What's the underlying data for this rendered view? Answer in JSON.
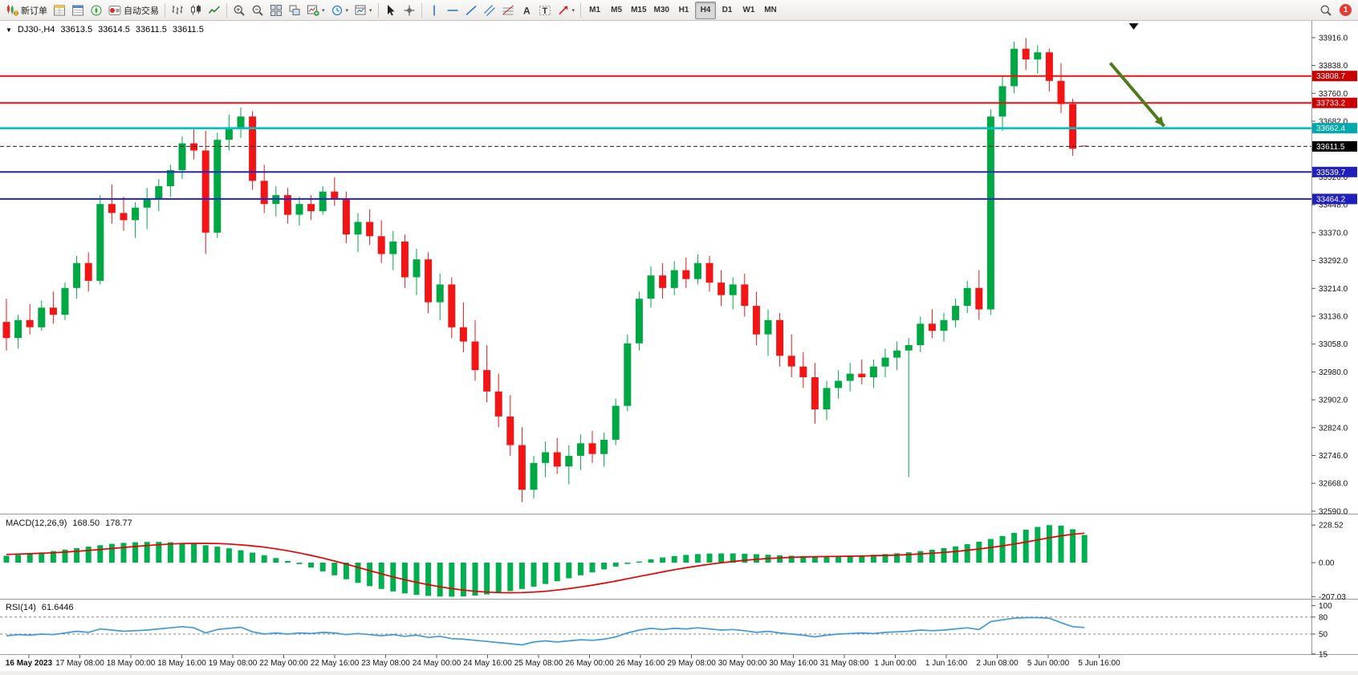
{
  "icons": {
    "dropdown": "▾",
    "collapse": "▼",
    "text_tool": "A",
    "label_tool": "T"
  },
  "toolbar": {
    "new_order_label": "新订单",
    "autotrading_label": "自动交易",
    "timeframes": [
      "M1",
      "M5",
      "M15",
      "M30",
      "H1",
      "H4",
      "D1",
      "W1",
      "MN"
    ],
    "active_timeframe": "H4",
    "notification_count": "1"
  },
  "chart_header": {
    "symbol_period": "DJ30-,H4",
    "open": "33613.5",
    "high": "33614.5",
    "low": "33611.5",
    "close": "33611.5"
  },
  "panels": {
    "macd": {
      "title": "MACD(12,26,9)",
      "main_value": "168.50",
      "signal_value": "178.77"
    },
    "rsi": {
      "title": "RSI(14)",
      "value": "61.6446"
    }
  },
  "chart_data": {
    "type": "candlestick",
    "title": "DJ30-,H4",
    "symbol": "DJ30-",
    "timeframe": "H4",
    "ylim": [
      32583,
      33963
    ],
    "colors": {
      "bull": "#00a843",
      "bear": "#f21515",
      "background": "#ffffff"
    },
    "price_axis_ticks": [
      "33916.0",
      "33838.0",
      "33760.0",
      "33682.0",
      "33604.0",
      "33526.0",
      "33448.0",
      "33370.0",
      "33292.0",
      "33214.0",
      "33136.0",
      "33058.0",
      "32980.0",
      "32902.0",
      "32824.0",
      "32746.0",
      "32668.0",
      "32590.0"
    ],
    "x_labels": [
      "16 May 2023",
      "17 May 08:00",
      "18 May 00:00",
      "18 May 16:00",
      "19 May 08:00",
      "22 May 00:00",
      "22 May 16:00",
      "23 May 08:00",
      "24 May 00:00",
      "24 May 16:00",
      "25 May 08:00",
      "26 May 00:00",
      "26 May 16:00",
      "29 May 08:00",
      "30 May 00:00",
      "30 May 16:00",
      "31 May 08:00",
      "1 Jun 00:00",
      "1 Jun 16:00",
      "2 Jun 08:00",
      "5 Jun 00:00",
      "5 Jun 16:00"
    ],
    "horizontal_lines": [
      {
        "price": 33808.7,
        "label": "33808.7",
        "color": "#ee1111",
        "box_color": "#cc0000",
        "width": 2
      },
      {
        "price": 33733.2,
        "label": "33733.2",
        "color": "#ee1111",
        "box_color": "#cc0000",
        "width": 2
      },
      {
        "price": 33662.4,
        "label": "33662.4",
        "color": "#00c3c3",
        "box_color": "#00a9ad",
        "width": 2.6
      },
      {
        "price": 33539.7,
        "label": "33539.7",
        "color": "#2323cc",
        "box_color": "#2020bb",
        "width": 2
      },
      {
        "price": 33464.2,
        "label": "33464.2",
        "color": "#2323cc",
        "box_color": "#2020bb",
        "width": 2
      }
    ],
    "current_price": 33611.5,
    "current_price_label": "33611.5",
    "annotations": [
      {
        "type": "arrow",
        "color": "#4f7a1e",
        "from": {
          "index": 94.2,
          "price": 33845
        },
        "to": {
          "index": 98.8,
          "price": 33668
        }
      },
      {
        "type": "shift-marker",
        "index": 96.2
      }
    ],
    "ohlc": [
      [
        33120,
        33185,
        33040,
        33075
      ],
      [
        33075,
        33140,
        33045,
        33125
      ],
      [
        33125,
        33170,
        33085,
        33105
      ],
      [
        33105,
        33180,
        33095,
        33160
      ],
      [
        33160,
        33205,
        33115,
        33140
      ],
      [
        33140,
        33230,
        33125,
        33215
      ],
      [
        33215,
        33305,
        33185,
        33285
      ],
      [
        33285,
        33315,
        33205,
        33235
      ],
      [
        33235,
        33475,
        33225,
        33450
      ],
      [
        33450,
        33505,
        33395,
        33425
      ],
      [
        33425,
        33470,
        33375,
        33405
      ],
      [
        33405,
        33455,
        33355,
        33440
      ],
      [
        33440,
        33495,
        33380,
        33465
      ],
      [
        33465,
        33520,
        33430,
        33500
      ],
      [
        33500,
        33560,
        33470,
        33545
      ],
      [
        33545,
        33640,
        33520,
        33620
      ],
      [
        33620,
        33665,
        33575,
        33600
      ],
      [
        33600,
        33655,
        33310,
        33370
      ],
      [
        33370,
        33650,
        33355,
        33630
      ],
      [
        33630,
        33700,
        33600,
        33665
      ],
      [
        33665,
        33720,
        33635,
        33695
      ],
      [
        33695,
        33710,
        33490,
        33515
      ],
      [
        33515,
        33560,
        33425,
        33450
      ],
      [
        33450,
        33500,
        33415,
        33475
      ],
      [
        33475,
        33495,
        33395,
        33420
      ],
      [
        33420,
        33470,
        33390,
        33450
      ],
      [
        33450,
        33475,
        33405,
        33430
      ],
      [
        33430,
        33500,
        33420,
        33485
      ],
      [
        33485,
        33525,
        33445,
        33465
      ],
      [
        33465,
        33485,
        33340,
        33365
      ],
      [
        33365,
        33425,
        33315,
        33400
      ],
      [
        33400,
        33435,
        33335,
        33360
      ],
      [
        33360,
        33405,
        33285,
        33310
      ],
      [
        33310,
        33375,
        33265,
        33345
      ],
      [
        33345,
        33365,
        33215,
        33245
      ],
      [
        33245,
        33325,
        33195,
        33295
      ],
      [
        33295,
        33315,
        33145,
        33175
      ],
      [
        33175,
        33255,
        33125,
        33225
      ],
      [
        33225,
        33245,
        33075,
        33105
      ],
      [
        33105,
        33175,
        33035,
        33065
      ],
      [
        33065,
        33125,
        32955,
        32985
      ],
      [
        32985,
        33055,
        32895,
        32925
      ],
      [
        32925,
        32975,
        32825,
        32855
      ],
      [
        32855,
        32915,
        32745,
        32775
      ],
      [
        32775,
        32825,
        32615,
        32650
      ],
      [
        32650,
        32745,
        32625,
        32725
      ],
      [
        32725,
        32785,
        32685,
        32755
      ],
      [
        32755,
        32795,
        32695,
        32715
      ],
      [
        32715,
        32775,
        32665,
        32745
      ],
      [
        32745,
        32805,
        32705,
        32780
      ],
      [
        32780,
        32815,
        32725,
        32750
      ],
      [
        32750,
        32810,
        32715,
        32790
      ],
      [
        32790,
        32905,
        32775,
        32885
      ],
      [
        32885,
        33085,
        32870,
        33060
      ],
      [
        33060,
        33205,
        33040,
        33185
      ],
      [
        33185,
        33275,
        33160,
        33250
      ],
      [
        33250,
        33285,
        33185,
        33215
      ],
      [
        33215,
        33290,
        33195,
        33265
      ],
      [
        33265,
        33300,
        33215,
        33240
      ],
      [
        33240,
        33310,
        33225,
        33285
      ],
      [
        33285,
        33305,
        33205,
        33230
      ],
      [
        33230,
        33265,
        33165,
        33195
      ],
      [
        33195,
        33245,
        33155,
        33225
      ],
      [
        33225,
        33255,
        33135,
        33165
      ],
      [
        33165,
        33205,
        33055,
        33085
      ],
      [
        33085,
        33155,
        33025,
        33125
      ],
      [
        33125,
        33145,
        32995,
        33025
      ],
      [
        33025,
        33085,
        32965,
        32995
      ],
      [
        32995,
        33035,
        32935,
        32965
      ],
      [
        32965,
        33005,
        32835,
        32875
      ],
      [
        32875,
        32955,
        32845,
        32935
      ],
      [
        32935,
        32985,
        32905,
        32955
      ],
      [
        32955,
        33005,
        32925,
        32975
      ],
      [
        32975,
        33015,
        32945,
        32965
      ],
      [
        32965,
        33015,
        32935,
        32995
      ],
      [
        32995,
        33045,
        32965,
        33020
      ],
      [
        33020,
        33065,
        32985,
        33040
      ],
      [
        33040,
        33075,
        32685,
        33055
      ],
      [
        33055,
        33135,
        33035,
        33115
      ],
      [
        33115,
        33155,
        33075,
        33095
      ],
      [
        33095,
        33145,
        33065,
        33125
      ],
      [
        33125,
        33185,
        33105,
        33165
      ],
      [
        33165,
        33235,
        33145,
        33215
      ],
      [
        33215,
        33265,
        33125,
        33155
      ],
      [
        33155,
        33715,
        33140,
        33695
      ],
      [
        33695,
        33810,
        33655,
        33780
      ],
      [
        33780,
        33905,
        33760,
        33885
      ],
      [
        33885,
        33915,
        33825,
        33855
      ],
      [
        33855,
        33895,
        33815,
        33875
      ],
      [
        33875,
        33885,
        33765,
        33795
      ],
      [
        33795,
        33845,
        33705,
        33730
      ],
      [
        33730,
        33745,
        33585,
        33605
      ],
      [
        33613.5,
        33614.5,
        33611.5,
        33611.5
      ]
    ],
    "indicators": {
      "macd": {
        "name": "MACD(12,26,9)",
        "main": 168.5,
        "signal": 178.77,
        "axis_labels": [
          "228.52",
          "0.00",
          "-207.03"
        ],
        "histogram_color": "#00b050",
        "signal_color": "#e80000",
        "histogram": [
          42,
          48,
          55,
          62,
          70,
          79,
          88,
          97,
          106,
          114,
          120,
          124,
          126,
          126,
          124,
          120,
          114,
          106,
          97,
          87,
          75,
          61,
          45,
          28,
          10,
          -9,
          -30,
          -53,
          -77,
          -101,
          -123,
          -143,
          -160,
          -175,
          -187,
          -196,
          -202,
          -206,
          -207,
          -205,
          -200,
          -193,
          -184,
          -173,
          -160,
          -146,
          -130,
          -113,
          -95,
          -77,
          -59,
          -41,
          -24,
          -8,
          7,
          20,
          31,
          40,
          47,
          52,
          55,
          56,
          56,
          54,
          51,
          48,
          45,
          42,
          40,
          39,
          39,
          40,
          42,
          45,
          48,
          52,
          57,
          63,
          70,
          78,
          88,
          99,
          112,
          127,
          144,
          162,
          181,
          200,
          217,
          228,
          225,
          203,
          168.5
        ],
        "signal_line": [
          50,
          52,
          54,
          57,
          60,
          64,
          69,
          74,
          80,
          86,
          92,
          98,
          104,
          109,
          113,
          116,
          117,
          117,
          116,
          113,
          108,
          102,
          94,
          84,
          72,
          59,
          44,
          28,
          10,
          -9,
          -29,
          -49,
          -68,
          -87,
          -104,
          -120,
          -134,
          -147,
          -158,
          -167,
          -174,
          -179,
          -182,
          -183,
          -182,
          -179,
          -174,
          -167,
          -158,
          -148,
          -137,
          -125,
          -112,
          -98,
          -84,
          -70,
          -56,
          -43,
          -31,
          -20,
          -10,
          -1,
          7,
          14,
          20,
          25,
          29,
          32,
          34,
          36,
          37,
          38,
          39,
          40,
          42,
          44,
          46,
          49,
          53,
          57,
          62,
          68,
          75,
          83,
          92,
          102,
          113,
          125,
          138,
          151,
          163,
          172,
          178.8
        ]
      },
      "rsi": {
        "name": "RSI(14)",
        "value": 61.6446,
        "levels": [
          80,
          50
        ],
        "axis_labels": [
          "100",
          "80",
          "50",
          "15"
        ],
        "line_color": "#3f9ad8",
        "values": [
          47,
          49,
          48,
          50,
          49,
          52,
          55,
          53,
          59,
          57,
          55,
          56,
          57,
          59,
          61,
          63,
          61,
          52,
          58,
          60,
          62,
          54,
          50,
          52,
          50,
          52,
          51,
          53,
          52,
          49,
          51,
          49,
          47,
          49,
          46,
          48,
          44,
          46,
          42,
          41,
          39,
          37,
          35,
          33,
          31,
          36,
          38,
          36,
          38,
          40,
          39,
          41,
          45,
          52,
          57,
          60,
          58,
          60,
          59,
          61,
          59,
          57,
          58,
          56,
          53,
          55,
          52,
          50,
          48,
          45,
          48,
          50,
          51,
          52,
          51,
          53,
          54,
          55,
          57,
          56,
          57,
          59,
          61,
          58,
          72,
          75,
          78,
          79,
          79,
          78,
          70,
          63,
          61.6
        ]
      }
    }
  }
}
